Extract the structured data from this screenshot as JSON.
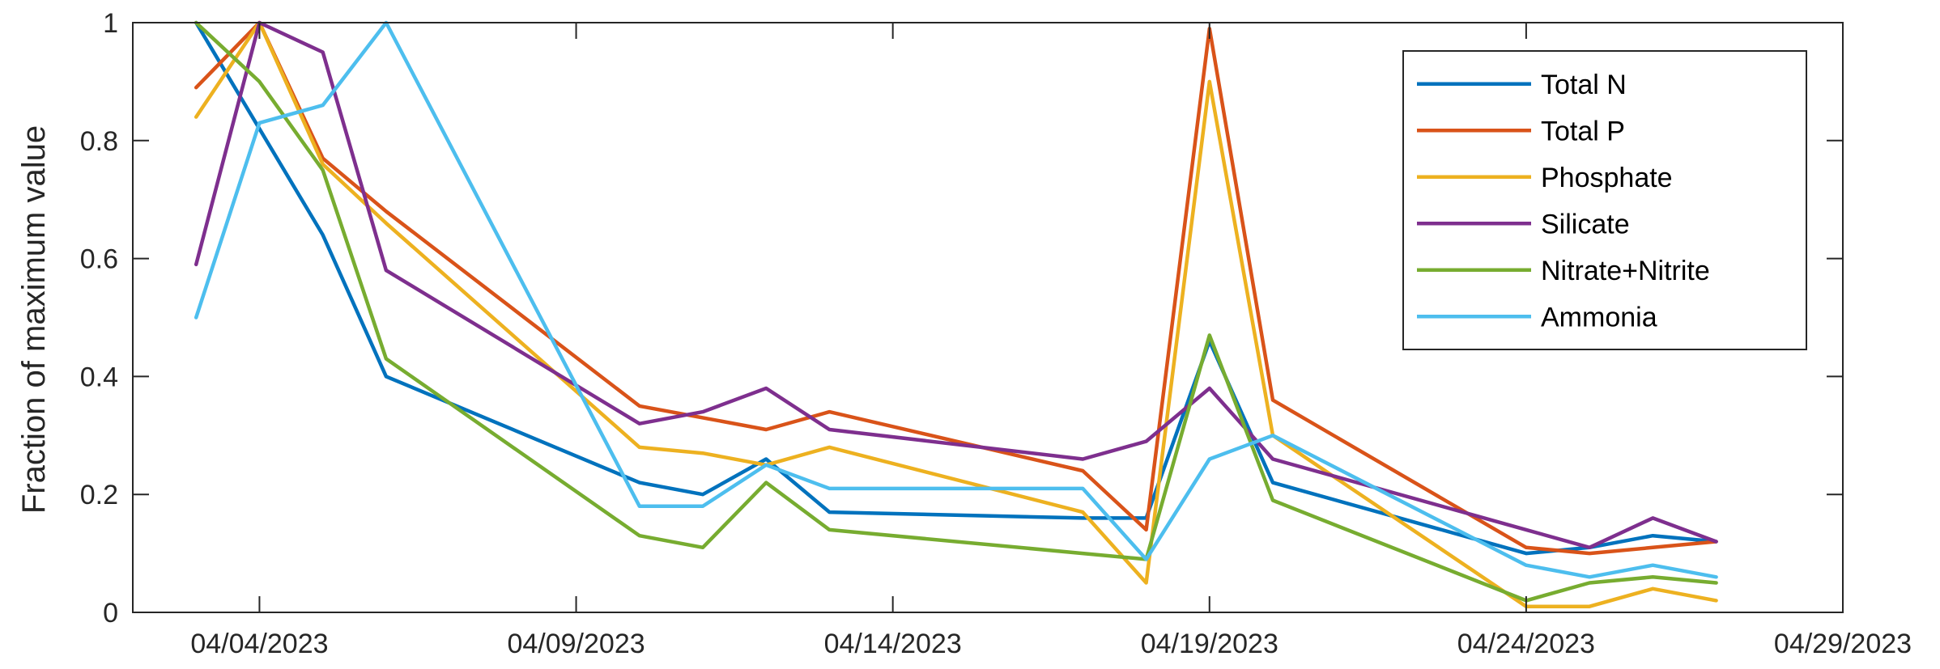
{
  "chart_data": {
    "type": "line",
    "title": "",
    "xlabel": "",
    "ylabel": "Fraction of maximum value",
    "xlim": [
      "2023-04-02",
      "2023-04-29"
    ],
    "ylim": [
      0,
      1
    ],
    "x_ticks": [
      "04/04/2023",
      "04/09/2023",
      "04/14/2023",
      "04/19/2023",
      "04/24/2023",
      "04/29/2023"
    ],
    "y_ticks": [
      "0",
      "0.2",
      "0.4",
      "0.6",
      "0.8",
      "1"
    ],
    "grid": false,
    "legend_position": "top-right",
    "series": [
      {
        "name": "Total N",
        "color": "#0072BD",
        "x": [
          "2023-04-03",
          "2023-04-04",
          "2023-04-05",
          "2023-04-06",
          "2023-04-10",
          "2023-04-11",
          "2023-04-12",
          "2023-04-13",
          "2023-04-17",
          "2023-04-18",
          "2023-04-19",
          "2023-04-20",
          "2023-04-24",
          "2023-04-25",
          "2023-04-26",
          "2023-04-27"
        ],
        "values": [
          1.0,
          0.82,
          0.64,
          0.4,
          0.22,
          0.2,
          0.26,
          0.17,
          0.16,
          0.16,
          0.46,
          0.22,
          0.1,
          0.11,
          0.13,
          0.12
        ]
      },
      {
        "name": "Total P",
        "color": "#D95319",
        "x": [
          "2023-04-03",
          "2023-04-04",
          "2023-04-05",
          "2023-04-06",
          "2023-04-10",
          "2023-04-11",
          "2023-04-12",
          "2023-04-13",
          "2023-04-17",
          "2023-04-18",
          "2023-04-19",
          "2023-04-20",
          "2023-04-24",
          "2023-04-25",
          "2023-04-26",
          "2023-04-27"
        ],
        "values": [
          0.89,
          1.0,
          0.77,
          0.68,
          0.35,
          0.33,
          0.31,
          0.34,
          0.24,
          0.14,
          0.99,
          0.36,
          0.11,
          0.1,
          0.11,
          0.12
        ]
      },
      {
        "name": "Phosphate",
        "color": "#EDB120",
        "x": [
          "2023-04-03",
          "2023-04-04",
          "2023-04-05",
          "2023-04-06",
          "2023-04-10",
          "2023-04-11",
          "2023-04-12",
          "2023-04-13",
          "2023-04-17",
          "2023-04-18",
          "2023-04-19",
          "2023-04-20",
          "2023-04-24",
          "2023-04-25",
          "2023-04-26",
          "2023-04-27"
        ],
        "values": [
          0.84,
          1.0,
          0.76,
          0.66,
          0.28,
          0.27,
          0.25,
          0.28,
          0.17,
          0.05,
          0.9,
          0.3,
          0.01,
          0.01,
          0.04,
          0.02
        ]
      },
      {
        "name": "Silicate",
        "color": "#7E2F8E",
        "x": [
          "2023-04-03",
          "2023-04-04",
          "2023-04-05",
          "2023-04-06",
          "2023-04-10",
          "2023-04-11",
          "2023-04-12",
          "2023-04-13",
          "2023-04-17",
          "2023-04-18",
          "2023-04-19",
          "2023-04-20",
          "2023-04-24",
          "2023-04-25",
          "2023-04-26",
          "2023-04-27"
        ],
        "values": [
          0.59,
          1.0,
          0.95,
          0.58,
          0.32,
          0.34,
          0.38,
          0.31,
          0.26,
          0.29,
          0.38,
          0.26,
          0.14,
          0.11,
          0.16,
          0.12
        ]
      },
      {
        "name": "Nitrate+Nitrite",
        "color": "#77AC30",
        "x": [
          "2023-04-03",
          "2023-04-04",
          "2023-04-05",
          "2023-04-06",
          "2023-04-10",
          "2023-04-11",
          "2023-04-12",
          "2023-04-13",
          "2023-04-17",
          "2023-04-18",
          "2023-04-19",
          "2023-04-20",
          "2023-04-24",
          "2023-04-25",
          "2023-04-26",
          "2023-04-27"
        ],
        "values": [
          1.0,
          0.9,
          0.75,
          0.43,
          0.13,
          0.11,
          0.22,
          0.14,
          0.1,
          0.09,
          0.47,
          0.19,
          0.02,
          0.05,
          0.06,
          0.05
        ]
      },
      {
        "name": "Ammonia",
        "color": "#4DBEEE",
        "x": [
          "2023-04-03",
          "2023-04-04",
          "2023-04-05",
          "2023-04-06",
          "2023-04-10",
          "2023-04-11",
          "2023-04-12",
          "2023-04-13",
          "2023-04-17",
          "2023-04-18",
          "2023-04-19",
          "2023-04-20",
          "2023-04-24",
          "2023-04-25",
          "2023-04-26",
          "2023-04-27"
        ],
        "values": [
          0.5,
          0.83,
          0.86,
          1.0,
          0.18,
          0.18,
          0.25,
          0.21,
          0.21,
          0.09,
          0.26,
          0.3,
          0.08,
          0.06,
          0.08,
          0.06
        ]
      }
    ]
  }
}
